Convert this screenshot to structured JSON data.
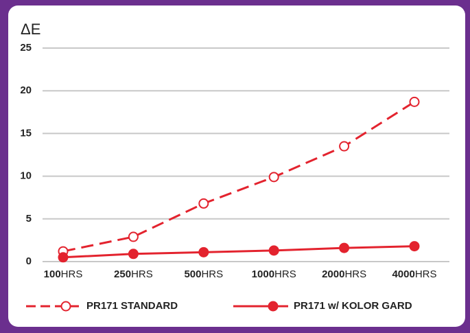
{
  "chart_data": {
    "type": "line",
    "y_axis_label": "ΔE",
    "categories": [
      "100HRS",
      "250HRS",
      "500HRS",
      "1000HRS",
      "2000HRS",
      "4000HRS"
    ],
    "series": [
      {
        "name": "PR171 STANDARD",
        "color": "#e3232e",
        "style": "dashed",
        "marker": "open",
        "values": [
          1.2,
          2.9,
          6.8,
          9.9,
          13.5,
          18.7
        ]
      },
      {
        "name": "PR171 w/ KOLOR GARD",
        "color": "#e3232e",
        "style": "solid",
        "marker": "filled",
        "values": [
          0.5,
          0.9,
          1.1,
          1.3,
          1.6,
          1.8
        ]
      }
    ],
    "ylim": [
      0,
      25
    ],
    "yticks": [
      0,
      5,
      10,
      15,
      20,
      25
    ],
    "grid": true,
    "legend": "bottom"
  }
}
